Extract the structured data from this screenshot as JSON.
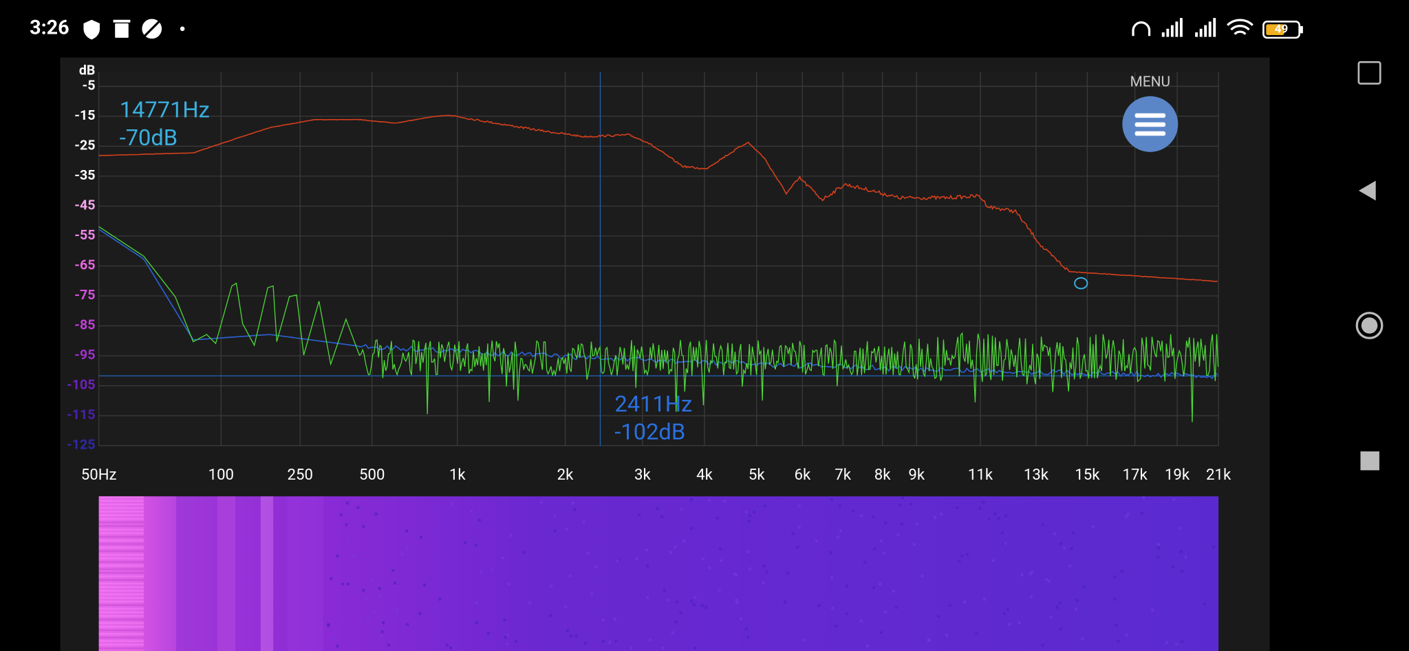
{
  "status_bar": {
    "time": "3:26",
    "battery": "49"
  },
  "menu": {
    "label": "MENU"
  },
  "cursor": {
    "peak_freq": "14771Hz",
    "peak_level": "-70dB",
    "freq": "2411Hz",
    "level": "-102dB"
  },
  "axes": {
    "y_unit": "dB",
    "y_ticks": [
      "-5",
      "-15",
      "-25",
      "-35",
      "-45",
      "-55",
      "-65",
      "-75",
      "-85",
      "-95",
      "-105",
      "-115",
      "-125"
    ],
    "x_ticks": [
      "50Hz",
      "100",
      "250",
      "500",
      "1k",
      "2k",
      "3k",
      "4k",
      "5k",
      "6k",
      "7k",
      "8k",
      "9k",
      "11k",
      "13k",
      "15k",
      "17k",
      "19k",
      "21k"
    ]
  }
}
